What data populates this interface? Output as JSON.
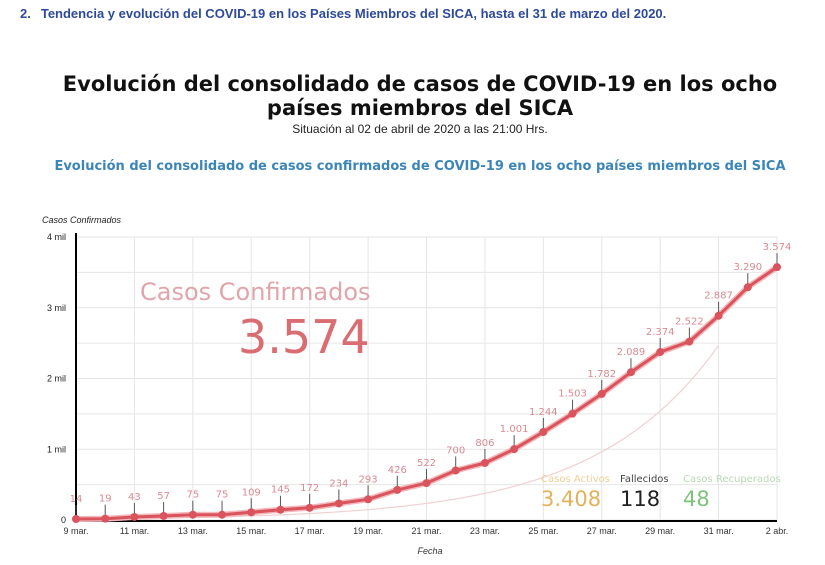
{
  "heading": {
    "number": "2.",
    "text": "Tendencia y evolución del COVID-19 en los Países Miembros del SICA, hasta el 31 de marzo del 2020."
  },
  "infographic": {
    "title_line1": "Evolución del consolidado de casos de COVID-19 en los ocho",
    "title_line2": "países miembros del SICA",
    "subtitle": "Situación al 02 de abril de 2020 a las 21:00 Hrs."
  },
  "summary": {
    "confirmed_label": "Casos Confirmados",
    "confirmed_value": "3.574",
    "active_label": "Casos Activos",
    "active_value": "3.408",
    "deaths_label": "Fallecidos",
    "deaths_value": "118",
    "recovered_label": "Casos Recuperados",
    "recovered_value": "48"
  },
  "colors": {
    "heading": "#2e4a9a",
    "chart_title": "#3b85b8",
    "line": "#d9545d",
    "data_label": "#d98a91",
    "active": "#e8b55a",
    "deaths": "#222222",
    "recovered": "#7fc27a",
    "grid": "#e6e6e6"
  },
  "chart_data": {
    "type": "line",
    "title": "Evolución del consolidado de casos confirmados de COVID-19 en los ocho países miembros del SICA",
    "xlabel": "Fecha",
    "ylabel": "Casos Confirmados",
    "ylim": [
      0,
      4000
    ],
    "yticks": [
      0,
      1000,
      2000,
      3000,
      4000
    ],
    "ytick_labels": [
      "0",
      "1 mil",
      "2 mil",
      "3 mil",
      "4 mil"
    ],
    "xtick_labels": [
      "9 mar.",
      "11 mar.",
      "13 mar.",
      "15 mar.",
      "17 mar.",
      "19 mar.",
      "21 mar.",
      "23 mar.",
      "25 mar.",
      "27 mar.",
      "29 mar.",
      "31 mar.",
      "2 abr."
    ],
    "grid": true,
    "legend": false,
    "x": [
      "9 mar.",
      "10 mar.",
      "11 mar.",
      "12 mar.",
      "13 mar.",
      "14 mar.",
      "15 mar.",
      "16 mar.",
      "17 mar.",
      "18 mar.",
      "19 mar.",
      "20 mar.",
      "21 mar.",
      "22 mar.",
      "23 mar.",
      "24 mar.",
      "25 mar.",
      "26 mar.",
      "27 mar.",
      "28 mar.",
      "29 mar.",
      "30 mar.",
      "31 mar.",
      "1 abr.",
      "2 abr."
    ],
    "series": [
      {
        "name": "Casos Confirmados",
        "values": [
          14,
          19,
          43,
          57,
          75,
          75,
          109,
          145,
          172,
          234,
          293,
          426,
          522,
          700,
          806,
          1001,
          1244,
          1503,
          1782,
          2089,
          2374,
          2522,
          2887,
          3290,
          3574
        ],
        "labels": [
          "14",
          "19",
          "43",
          "57",
          "75",
          "75",
          "109",
          "145",
          "172",
          "234",
          "293",
          "426",
          "522",
          "700",
          "806",
          "1.001",
          "1.244",
          "1.503",
          "1.782",
          "2.089",
          "2.374",
          "2.522",
          "2.887",
          "3.290",
          "3.574"
        ]
      }
    ],
    "annotations": [
      "Casos Confirmados 3.574",
      "Casos Activos 3.408",
      "Fallecidos 118",
      "Casos Recuperados 48"
    ]
  }
}
